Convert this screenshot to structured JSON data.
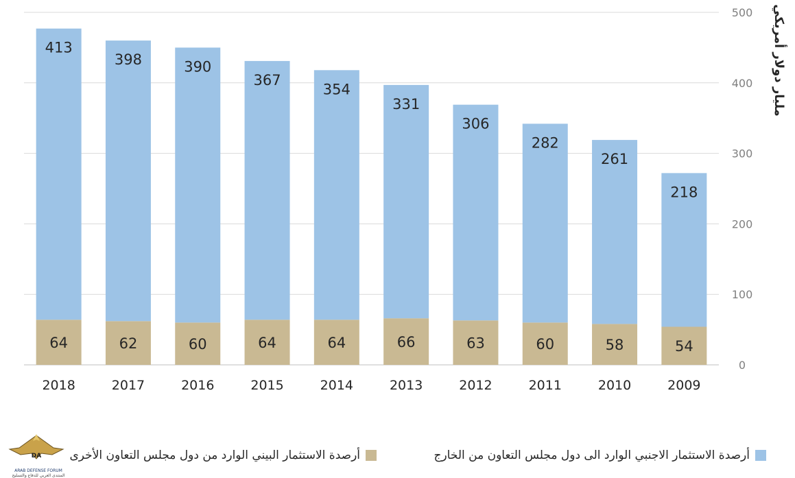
{
  "chart_data": {
    "type": "bar",
    "stacked": true,
    "categories": [
      "2018",
      "2017",
      "2016",
      "2015",
      "2014",
      "2013",
      "2012",
      "2011",
      "2010",
      "2009"
    ],
    "series": [
      {
        "name": "أرصدة الاستثمار البيني الوارد من دول مجلس التعاون الأخرى",
        "color": "#c9b993",
        "values": [
          64,
          62,
          60,
          64,
          64,
          66,
          63,
          60,
          58,
          54
        ]
      },
      {
        "name": "أرصدة الاستثمار الاجنبي الوارد الى دول مجلس التعاون من الخارج",
        "color": "#9dc3e6",
        "values": [
          413,
          398,
          390,
          367,
          354,
          331,
          306,
          282,
          261,
          218
        ]
      }
    ],
    "ylabel": "مليار دولار أمريكي",
    "ylim": [
      0,
      500
    ],
    "yticks": [
      0,
      100,
      200,
      300,
      400,
      500
    ],
    "grid": true,
    "legend_position": "bottom"
  },
  "logo": {
    "line1": "ARAB DEFENSE FORUM",
    "line2": "المنتدى العربي للدفاع والتسليح"
  }
}
